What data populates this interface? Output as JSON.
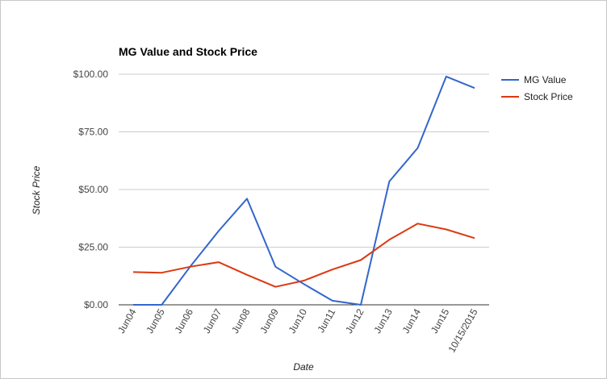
{
  "chart_data": {
    "type": "line",
    "title": "MG Value and Stock Price",
    "xlabel": "Date",
    "ylabel": "Stock Price",
    "categories": [
      "Jun04",
      "Jun05",
      "Jun06",
      "Jun07",
      "Jun08",
      "Jun09",
      "Jun10",
      "Jun11",
      "Jun12",
      "Jun13",
      "Jun14",
      "Jun15",
      "10/15/2015"
    ],
    "ylim": [
      0,
      100
    ],
    "yticks": [
      "$0.00",
      "$25.00",
      "$50.00",
      "$75.00",
      "$100.00"
    ],
    "ytick_values": [
      0,
      25,
      50,
      75,
      100
    ],
    "grid": true,
    "legend_position": "right",
    "series": [
      {
        "name": "MG Value",
        "color": "#3366cc",
        "values": [
          0,
          0,
          16.5,
          32,
          46,
          16.5,
          9,
          1.8,
          0,
          53.5,
          68,
          99,
          94
        ]
      },
      {
        "name": "Stock Price",
        "color": "#dc3912",
        "values": [
          14.2,
          13.9,
          16.5,
          18.5,
          13,
          7.8,
          10.5,
          15.3,
          19.4,
          28.2,
          35.2,
          32.7,
          28.9
        ]
      }
    ]
  }
}
